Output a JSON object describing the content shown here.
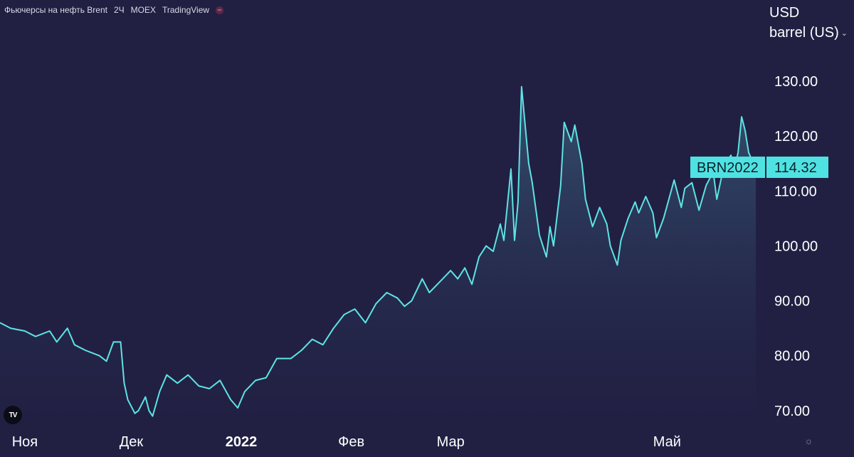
{
  "header": {
    "title": "Фьючерсы на нефть Brent",
    "interval": "2Ч",
    "exchange": "MOEX",
    "source": "TradingView"
  },
  "unit_label_1": "USD",
  "unit_label_2": "barrel (US)",
  "icons": {
    "logo": "tradingview-logo-icon",
    "settings": "gear-icon",
    "unit_menu": "chevron-down-icon",
    "status": "status-dot-icon"
  },
  "logo_text": "TV",
  "colors": {
    "line": "#5ee3e3",
    "background": "#212043",
    "label_bg": "#4fe2e2"
  },
  "chart_data": {
    "type": "area",
    "title": "Фьючерсы на нефть Brent",
    "ylabel": "USD barrel (US)",
    "ylim": [
      67,
      137
    ],
    "y_ticks": [
      "70.00",
      "80.00",
      "90.00",
      "100.00",
      "110.00",
      "120.00",
      "130.00"
    ],
    "y_tick_values": [
      70,
      80,
      90,
      100,
      110,
      120,
      130
    ],
    "x_labels": [
      "Ноя",
      "Дек",
      "2022",
      "Фев",
      "Мар",
      "Май"
    ],
    "x_label_positions": [
      "2021-11-01",
      "2021-12-01",
      "2022-01-01",
      "2022-02-01",
      "2022-03-01",
      "2022-05-01"
    ],
    "x_range": [
      "2021-10-25",
      "2022-05-26"
    ],
    "series": [
      {
        "ticker": "BRN2022",
        "last_value": "114.32",
        "points": [
          [
            "2021-10-25",
            86.0
          ],
          [
            "2021-10-28",
            85.0
          ],
          [
            "2021-11-01",
            84.5
          ],
          [
            "2021-11-04",
            83.5
          ],
          [
            "2021-11-08",
            84.5
          ],
          [
            "2021-11-10",
            82.5
          ],
          [
            "2021-11-13",
            85.0
          ],
          [
            "2021-11-15",
            82.0
          ],
          [
            "2021-11-18",
            81.0
          ],
          [
            "2021-11-22",
            80.0
          ],
          [
            "2021-11-24",
            79.0
          ],
          [
            "2021-11-26",
            82.5
          ],
          [
            "2021-11-28",
            82.5
          ],
          [
            "2021-11-29",
            75.0
          ],
          [
            "2021-11-30",
            72.0
          ],
          [
            "2021-12-02",
            69.5
          ],
          [
            "2021-12-03",
            70.0
          ],
          [
            "2021-12-05",
            72.5
          ],
          [
            "2021-12-06",
            70.0
          ],
          [
            "2021-12-07",
            69.0
          ],
          [
            "2021-12-09",
            73.5
          ],
          [
            "2021-12-11",
            76.5
          ],
          [
            "2021-12-14",
            75.0
          ],
          [
            "2021-12-17",
            76.5
          ],
          [
            "2021-12-20",
            74.5
          ],
          [
            "2021-12-23",
            74.0
          ],
          [
            "2021-12-26",
            75.5
          ],
          [
            "2021-12-29",
            72.0
          ],
          [
            "2021-12-31",
            70.5
          ],
          [
            "2022-01-02",
            73.5
          ],
          [
            "2022-01-05",
            75.5
          ],
          [
            "2022-01-08",
            76.0
          ],
          [
            "2022-01-11",
            79.5
          ],
          [
            "2022-01-15",
            79.5
          ],
          [
            "2022-01-18",
            81.0
          ],
          [
            "2022-01-21",
            83.0
          ],
          [
            "2022-01-24",
            82.0
          ],
          [
            "2022-01-27",
            85.0
          ],
          [
            "2022-01-30",
            87.5
          ],
          [
            "2022-02-02",
            88.5
          ],
          [
            "2022-02-05",
            86.0
          ],
          [
            "2022-02-08",
            89.5
          ],
          [
            "2022-02-11",
            91.5
          ],
          [
            "2022-02-14",
            90.5
          ],
          [
            "2022-02-16",
            89.0
          ],
          [
            "2022-02-18",
            90.0
          ],
          [
            "2022-02-21",
            94.0
          ],
          [
            "2022-02-23",
            91.5
          ],
          [
            "2022-02-26",
            93.5
          ],
          [
            "2022-03-01",
            95.5
          ],
          [
            "2022-03-03",
            94.0
          ],
          [
            "2022-03-05",
            96.0
          ],
          [
            "2022-03-07",
            93.0
          ],
          [
            "2022-03-09",
            98.0
          ],
          [
            "2022-03-11",
            100.0
          ],
          [
            "2022-03-13",
            99.0
          ],
          [
            "2022-03-15",
            104.0
          ],
          [
            "2022-03-16",
            101.0
          ],
          [
            "2022-03-18",
            114.0
          ],
          [
            "2022-03-19",
            101.0
          ],
          [
            "2022-03-20",
            108.0
          ],
          [
            "2022-03-21",
            129.0
          ],
          [
            "2022-03-23",
            115.0
          ],
          [
            "2022-03-24",
            111.5
          ],
          [
            "2022-03-26",
            102.0
          ],
          [
            "2022-03-28",
            98.0
          ],
          [
            "2022-03-29",
            103.5
          ],
          [
            "2022-03-30",
            100.0
          ],
          [
            "2022-04-01",
            111.0
          ],
          [
            "2022-04-02",
            122.5
          ],
          [
            "2022-04-04",
            119.0
          ],
          [
            "2022-04-05",
            122.0
          ],
          [
            "2022-04-07",
            115.0
          ],
          [
            "2022-04-08",
            108.5
          ],
          [
            "2022-04-10",
            103.5
          ],
          [
            "2022-04-12",
            107.0
          ],
          [
            "2022-04-14",
            104.0
          ],
          [
            "2022-04-15",
            100.0
          ],
          [
            "2022-04-17",
            96.5
          ],
          [
            "2022-04-18",
            101.0
          ],
          [
            "2022-04-20",
            105.0
          ],
          [
            "2022-04-22",
            108.0
          ],
          [
            "2022-04-23",
            106.0
          ],
          [
            "2022-04-25",
            109.0
          ],
          [
            "2022-04-27",
            106.0
          ],
          [
            "2022-04-28",
            101.5
          ],
          [
            "2022-04-30",
            105.0
          ],
          [
            "2022-05-03",
            112.0
          ],
          [
            "2022-05-05",
            107.0
          ],
          [
            "2022-05-06",
            110.5
          ],
          [
            "2022-05-08",
            111.5
          ],
          [
            "2022-05-10",
            106.5
          ],
          [
            "2022-05-12",
            111.0
          ],
          [
            "2022-05-14",
            113.5
          ],
          [
            "2022-05-15",
            108.5
          ],
          [
            "2022-05-17",
            114.5
          ],
          [
            "2022-05-19",
            116.5
          ],
          [
            "2022-05-20",
            114.0
          ],
          [
            "2022-05-21",
            117.0
          ],
          [
            "2022-05-22",
            123.5
          ],
          [
            "2022-05-23",
            121.0
          ],
          [
            "2022-05-24",
            117.0
          ],
          [
            "2022-05-25",
            115.5
          ],
          [
            "2022-05-26",
            114.32
          ]
        ]
      }
    ],
    "grid": false,
    "legend": "none"
  }
}
